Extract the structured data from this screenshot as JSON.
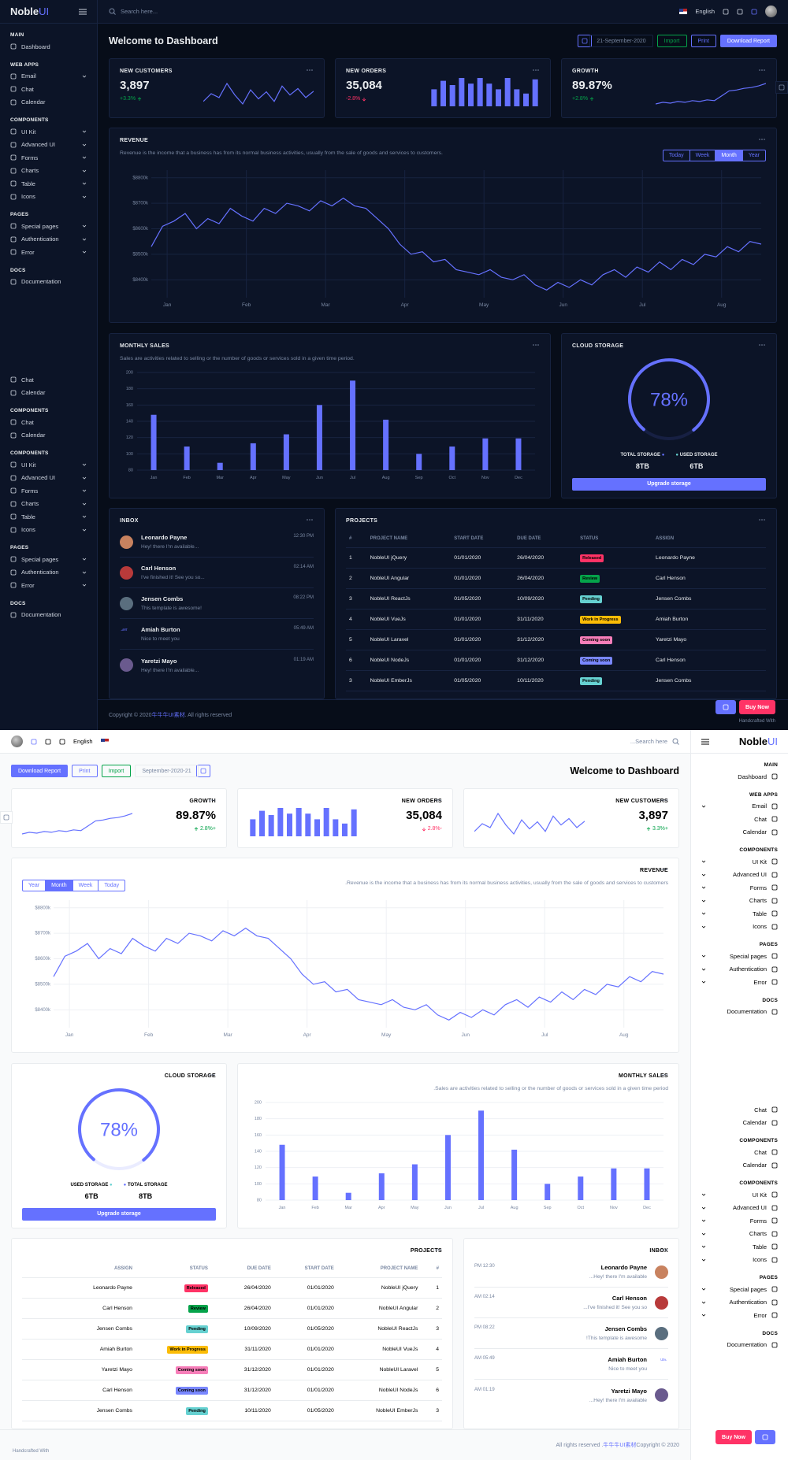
{
  "brand": {
    "name": "Noble",
    "suffix": "UI"
  },
  "header": {
    "search": "Search here...",
    "language": "English"
  },
  "sidebar": {
    "groups": [
      {
        "title": "MAIN",
        "items": [
          "Dashboard"
        ]
      },
      {
        "title": "WEB APPS",
        "items": [
          "Email",
          "Chat",
          "Calendar"
        ]
      },
      {
        "title": "COMPONENTS",
        "items": [
          "UI Kit",
          "Advanced UI",
          "Forms",
          "Charts",
          "Table",
          "Icons"
        ]
      },
      {
        "title": "PAGES",
        "items": [
          "Special pages",
          "Authentication",
          "Error"
        ]
      },
      {
        "title": "DOCS",
        "items": [
          "Documentation"
        ]
      },
      {
        "items": [
          "Chat",
          "Calendar"
        ]
      },
      {
        "title": "COMPONENTS",
        "items": [
          "Chat",
          "Calendar"
        ]
      },
      {
        "title": "COMPONENTS",
        "items": [
          "UI Kit",
          "Advanced UI",
          "Forms",
          "Charts",
          "Table",
          "Icons"
        ]
      },
      {
        "title": "PAGES",
        "items": [
          "Special pages",
          "Authentication",
          "Error"
        ]
      },
      {
        "title": "DOCS",
        "items": [
          "Documentation"
        ]
      }
    ]
  },
  "dashboard": {
    "title": "Welcome to Dashboard",
    "date": "21-September-2020",
    "actions": [
      "Import",
      "Print",
      "Download Report"
    ]
  },
  "stats": [
    {
      "title": "NEW CUSTOMERS",
      "value": "3,897",
      "change": "+3.3%",
      "trend": "up",
      "type": "line",
      "values": [
        40,
        52,
        46,
        68,
        50,
        36,
        58,
        44,
        55,
        40,
        64,
        50,
        60,
        46,
        56
      ]
    },
    {
      "title": "NEW ORDERS",
      "value": "35,084",
      "change": "-2.8%",
      "trend": "down",
      "type": "bar",
      "values": [
        60,
        90,
        75,
        100,
        80,
        100,
        80,
        60,
        100,
        60,
        45,
        95
      ]
    },
    {
      "title": "GROWTH",
      "value": "89.87%",
      "change": "+2.8%",
      "trend": "up",
      "type": "line",
      "values": [
        20,
        22,
        21,
        23,
        22,
        24,
        23,
        25,
        24,
        30,
        36,
        37,
        39,
        40,
        42,
        45
      ]
    }
  ],
  "revenue": {
    "title": "REVENUE",
    "type": "line",
    "description": "Revenue is the income that a business has from its normal business activities, usually from the sale of goods and services to customers.",
    "tabs": [
      "Today",
      "Week",
      "Month",
      "Year"
    ],
    "active_tab": "Month",
    "color": "#6571ff",
    "categories": [
      "Jan",
      "Feb",
      "Mar",
      "Apr",
      "May",
      "Jun",
      "Jul",
      "Aug"
    ],
    "values": [
      8530,
      8610,
      8630,
      8660,
      8600,
      8640,
      8620,
      8680,
      8650,
      8630,
      8680,
      8660,
      8700,
      8690,
      8670,
      8710,
      8690,
      8720,
      8690,
      8680,
      8640,
      8600,
      8540,
      8500,
      8510,
      8470,
      8480,
      8440,
      8430,
      8420,
      8440,
      8410,
      8400,
      8420,
      8380,
      8360,
      8390,
      8370,
      8400,
      8380,
      8420,
      8440,
      8410,
      8450,
      8430,
      8470,
      8440,
      8480,
      8460,
      8500,
      8490,
      8530,
      8510,
      8550,
      8540
    ],
    "ylim": [
      8330,
      8830
    ],
    "yticks": [
      {
        "value": 8800,
        "label": "$8800k"
      },
      {
        "value": 8700,
        "label": "$8700k"
      },
      {
        "value": 8600,
        "label": "$8600k"
      },
      {
        "value": 8500,
        "label": "$8500k"
      },
      {
        "value": 8400,
        "label": "$8400k"
      }
    ],
    "grid": true
  },
  "sales": {
    "title": "MONTHLY SALES",
    "type": "bar",
    "description": "Sales are activities related to selling or the number of goods or services sold in a given time period.",
    "categories": [
      "Jan",
      "Feb",
      "Mar",
      "Apr",
      "May",
      "Jun",
      "Jul",
      "Aug",
      "Sep",
      "Oct",
      "Nov",
      "Dec"
    ],
    "values": [
      148,
      109,
      89,
      113,
      124,
      160,
      190,
      142,
      100,
      109,
      119,
      119
    ],
    "color": "#6571ff",
    "ylim": [
      80,
      200
    ],
    "yticks": [
      80,
      100,
      120,
      140,
      160,
      180,
      200
    ],
    "grid": true
  },
  "storage": {
    "title": "CLOUD STORAGE",
    "percent": {
      "value": 78,
      "label": "78%"
    },
    "total_label": "TOTAL STORAGE",
    "total": "8TB",
    "used_label": "USED STORAGE",
    "used": "6TB",
    "button": "Upgrade storage"
  },
  "inbox": {
    "title": "INBOX",
    "messages": [
      {
        "name": "Leonardo Payne",
        "text": "Hey! there I'm available...",
        "time": "12:30 PM",
        "color": "#c8825f"
      },
      {
        "name": "Carl Henson",
        "text": "I've finished it! See you so...",
        "time": "02:14 AM",
        "color": "#b83a3a"
      },
      {
        "name": "Jensen Combs",
        "text": "This template is awesome!",
        "time": "08:22 PM",
        "color": "#5a6e7e"
      },
      {
        "name": "Amiah Burton",
        "text": "Nice to meet you",
        "time": "05:49 AM",
        "avatar_alt": "user"
      },
      {
        "name": "Yaretzi Mayo",
        "text": "Hey! there I'm available...",
        "time": "01:19 AM",
        "color": "#6a5a8e"
      }
    ]
  },
  "projects": {
    "title": "PROJECTS",
    "columns": [
      "#",
      "PROJECT NAME",
      "START DATE",
      "DUE DATE",
      "STATUS",
      "ASSIGN"
    ],
    "rows": [
      [
        "1",
        "NobleUI jQuery",
        "01/01/2020",
        "26/04/2020",
        "Released",
        "Leonardo Payne"
      ],
      [
        "2",
        "NobleUI Angular",
        "01/01/2020",
        "26/04/2020",
        "Review",
        "Carl Henson"
      ],
      [
        "3",
        "NobleUI ReactJs",
        "01/05/2020",
        "10/09/2020",
        "Pending",
        "Jensen Combs"
      ],
      [
        "4",
        "NobleUI VueJs",
        "01/01/2020",
        "31/11/2020",
        "Work in Progress",
        "Amiah Burton"
      ],
      [
        "5",
        "NobleUI Laravel",
        "01/01/2020",
        "31/12/2020",
        "Coming soon",
        "Yaretzi Mayo"
      ],
      [
        "6",
        "NobleUI NodeJs",
        "01/01/2020",
        "31/12/2020",
        "Coming soon",
        "Carl Henson"
      ],
      [
        "3",
        "NobleUI EmberJs",
        "01/05/2020",
        "10/11/2020",
        "Pending",
        "Jensen Combs"
      ]
    ],
    "status_colors": [
      "#ff3366",
      "#05a34a",
      "#66d1d1",
      "#fbbc06",
      "#f77eb9",
      "#7987ff",
      "#66d1d1"
    ]
  },
  "footer": {
    "copyright": "Copyright © 2020 ",
    "link": "牛牛牛UI素材",
    "rights": ". All rights reserved",
    "handcrafted": "Handcrafted With",
    "buy": "Buy Now"
  }
}
